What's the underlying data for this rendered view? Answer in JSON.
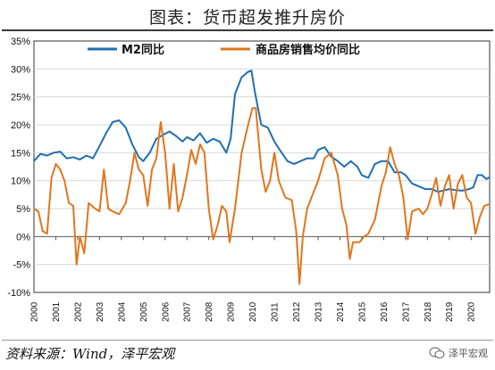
{
  "header": {
    "title": "图表：货币超发推升房价"
  },
  "footer": {
    "source": "资料来源：Wind，泽平宏观",
    "watermark": "泽平宏观"
  },
  "chart_data": {
    "type": "line",
    "yticks": [
      "35%",
      "30%",
      "25%",
      "20%",
      "15%",
      "10%",
      "5%",
      "0%",
      "-5%",
      "-10%"
    ],
    "xticks": [
      "2000",
      "2001",
      "2002",
      "2003",
      "2004",
      "2005",
      "2006",
      "2007",
      "2008",
      "2009",
      "2010",
      "2011",
      "2012",
      "2013",
      "2014",
      "2015",
      "2016",
      "2017",
      "2018",
      "2019",
      "2020"
    ],
    "ylim": [
      -10,
      35
    ],
    "xlim": [
      2000.0,
      2020.85
    ],
    "legend_placement": "top",
    "series": [
      {
        "name": "M2同比",
        "color": "#1f6fb2",
        "points": [
          [
            2000.0,
            13.5
          ],
          [
            2000.3,
            14.8
          ],
          [
            2000.6,
            14.5
          ],
          [
            2000.9,
            15.0
          ],
          [
            2001.2,
            15.2
          ],
          [
            2001.5,
            14.0
          ],
          [
            2001.8,
            14.2
          ],
          [
            2002.1,
            13.8
          ],
          [
            2002.4,
            14.5
          ],
          [
            2002.7,
            14.0
          ],
          [
            2003.0,
            16.2
          ],
          [
            2003.3,
            18.5
          ],
          [
            2003.6,
            20.5
          ],
          [
            2003.9,
            20.8
          ],
          [
            2004.2,
            19.5
          ],
          [
            2004.5,
            16.5
          ],
          [
            2004.8,
            14.2
          ],
          [
            2005.0,
            13.5
          ],
          [
            2005.3,
            15.0
          ],
          [
            2005.6,
            17.5
          ],
          [
            2005.9,
            18.2
          ],
          [
            2006.2,
            18.8
          ],
          [
            2006.5,
            18.0
          ],
          [
            2006.8,
            17.0
          ],
          [
            2007.0,
            17.8
          ],
          [
            2007.3,
            17.2
          ],
          [
            2007.6,
            18.5
          ],
          [
            2007.9,
            16.8
          ],
          [
            2008.2,
            17.5
          ],
          [
            2008.5,
            17.0
          ],
          [
            2008.8,
            15.0
          ],
          [
            2009.0,
            17.5
          ],
          [
            2009.2,
            25.5
          ],
          [
            2009.5,
            28.5
          ],
          [
            2009.8,
            29.5
          ],
          [
            2009.95,
            29.7
          ],
          [
            2010.1,
            26.0
          ],
          [
            2010.4,
            20.0
          ],
          [
            2010.7,
            19.5
          ],
          [
            2011.0,
            17.0
          ],
          [
            2011.3,
            15.2
          ],
          [
            2011.6,
            13.5
          ],
          [
            2011.9,
            13.0
          ],
          [
            2012.2,
            13.5
          ],
          [
            2012.5,
            14.0
          ],
          [
            2012.8,
            14.0
          ],
          [
            2013.0,
            15.5
          ],
          [
            2013.3,
            16.0
          ],
          [
            2013.6,
            14.3
          ],
          [
            2013.9,
            13.5
          ],
          [
            2014.2,
            12.5
          ],
          [
            2014.5,
            13.5
          ],
          [
            2014.8,
            12.5
          ],
          [
            2015.0,
            11.0
          ],
          [
            2015.3,
            10.5
          ],
          [
            2015.6,
            13.0
          ],
          [
            2015.9,
            13.5
          ],
          [
            2016.2,
            13.5
          ],
          [
            2016.5,
            11.5
          ],
          [
            2016.8,
            11.5
          ],
          [
            2017.0,
            11.0
          ],
          [
            2017.3,
            9.5
          ],
          [
            2017.6,
            9.0
          ],
          [
            2017.9,
            8.5
          ],
          [
            2018.2,
            8.5
          ],
          [
            2018.5,
            8.0
          ],
          [
            2018.8,
            8.3
          ],
          [
            2019.0,
            8.5
          ],
          [
            2019.3,
            8.3
          ],
          [
            2019.6,
            8.2
          ],
          [
            2019.9,
            8.5
          ],
          [
            2020.1,
            8.8
          ],
          [
            2020.3,
            11.0
          ],
          [
            2020.5,
            11.0
          ],
          [
            2020.7,
            10.3
          ],
          [
            2020.85,
            10.6
          ]
        ]
      },
      {
        "name": "商品房销售均价同比",
        "color": "#e0761e",
        "points": [
          [
            2000.0,
            5.0
          ],
          [
            2000.2,
            4.5
          ],
          [
            2000.4,
            1.0
          ],
          [
            2000.6,
            0.5
          ],
          [
            2000.8,
            10.5
          ],
          [
            2001.0,
            13.0
          ],
          [
            2001.2,
            12.0
          ],
          [
            2001.4,
            10.0
          ],
          [
            2001.6,
            6.0
          ],
          [
            2001.8,
            5.5
          ],
          [
            2001.95,
            -5.0
          ],
          [
            2002.1,
            0.0
          ],
          [
            2002.3,
            -3.0
          ],
          [
            2002.5,
            6.0
          ],
          [
            2002.8,
            5.0
          ],
          [
            2003.0,
            4.5
          ],
          [
            2003.2,
            12.0
          ],
          [
            2003.4,
            5.0
          ],
          [
            2003.6,
            4.5
          ],
          [
            2003.9,
            4.0
          ],
          [
            2004.2,
            6.0
          ],
          [
            2004.4,
            10.0
          ],
          [
            2004.6,
            15.0
          ],
          [
            2004.8,
            12.0
          ],
          [
            2005.0,
            11.0
          ],
          [
            2005.2,
            5.5
          ],
          [
            2005.4,
            12.0
          ],
          [
            2005.6,
            14.0
          ],
          [
            2005.8,
            20.5
          ],
          [
            2006.0,
            15.0
          ],
          [
            2006.2,
            5.0
          ],
          [
            2006.4,
            13.0
          ],
          [
            2006.6,
            4.5
          ],
          [
            2006.8,
            7.0
          ],
          [
            2007.0,
            11.0
          ],
          [
            2007.2,
            15.5
          ],
          [
            2007.4,
            13.0
          ],
          [
            2007.6,
            16.5
          ],
          [
            2007.8,
            15.0
          ],
          [
            2008.0,
            5.0
          ],
          [
            2008.2,
            -0.5
          ],
          [
            2008.4,
            2.0
          ],
          [
            2008.6,
            5.5
          ],
          [
            2008.8,
            4.5
          ],
          [
            2008.95,
            -1.0
          ],
          [
            2009.2,
            5.0
          ],
          [
            2009.5,
            15.0
          ],
          [
            2009.8,
            20.0
          ],
          [
            2010.0,
            23.0
          ],
          [
            2010.15,
            23.0
          ],
          [
            2010.4,
            12.0
          ],
          [
            2010.6,
            8.0
          ],
          [
            2010.8,
            10.0
          ],
          [
            2011.0,
            15.0
          ],
          [
            2011.2,
            10.0
          ],
          [
            2011.5,
            7.0
          ],
          [
            2011.8,
            6.5
          ],
          [
            2012.0,
            1.0
          ],
          [
            2012.15,
            -8.5
          ],
          [
            2012.3,
            0.0
          ],
          [
            2012.5,
            5.0
          ],
          [
            2012.8,
            8.0
          ],
          [
            2013.0,
            10.0
          ],
          [
            2013.3,
            14.0
          ],
          [
            2013.6,
            15.0
          ],
          [
            2013.9,
            11.0
          ],
          [
            2014.1,
            5.0
          ],
          [
            2014.3,
            2.0
          ],
          [
            2014.45,
            -4.0
          ],
          [
            2014.6,
            -1.0
          ],
          [
            2014.9,
            -1.0
          ],
          [
            2015.1,
            0.0
          ],
          [
            2015.3,
            0.5
          ],
          [
            2015.6,
            3.0
          ],
          [
            2015.9,
            9.0
          ],
          [
            2016.1,
            11.5
          ],
          [
            2016.3,
            16.0
          ],
          [
            2016.5,
            13.0
          ],
          [
            2016.7,
            11.0
          ],
          [
            2016.9,
            7.0
          ],
          [
            2017.1,
            -0.5
          ],
          [
            2017.3,
            4.5
          ],
          [
            2017.6,
            5.0
          ],
          [
            2017.8,
            4.0
          ],
          [
            2018.0,
            5.0
          ],
          [
            2018.2,
            7.5
          ],
          [
            2018.4,
            10.5
          ],
          [
            2018.6,
            5.5
          ],
          [
            2018.8,
            9.0
          ],
          [
            2019.0,
            11.0
          ],
          [
            2019.2,
            5.0
          ],
          [
            2019.4,
            9.5
          ],
          [
            2019.6,
            11.0
          ],
          [
            2019.8,
            7.0
          ],
          [
            2020.0,
            6.0
          ],
          [
            2020.2,
            0.5
          ],
          [
            2020.4,
            3.5
          ],
          [
            2020.6,
            5.5
          ],
          [
            2020.85,
            5.8
          ]
        ]
      }
    ]
  }
}
